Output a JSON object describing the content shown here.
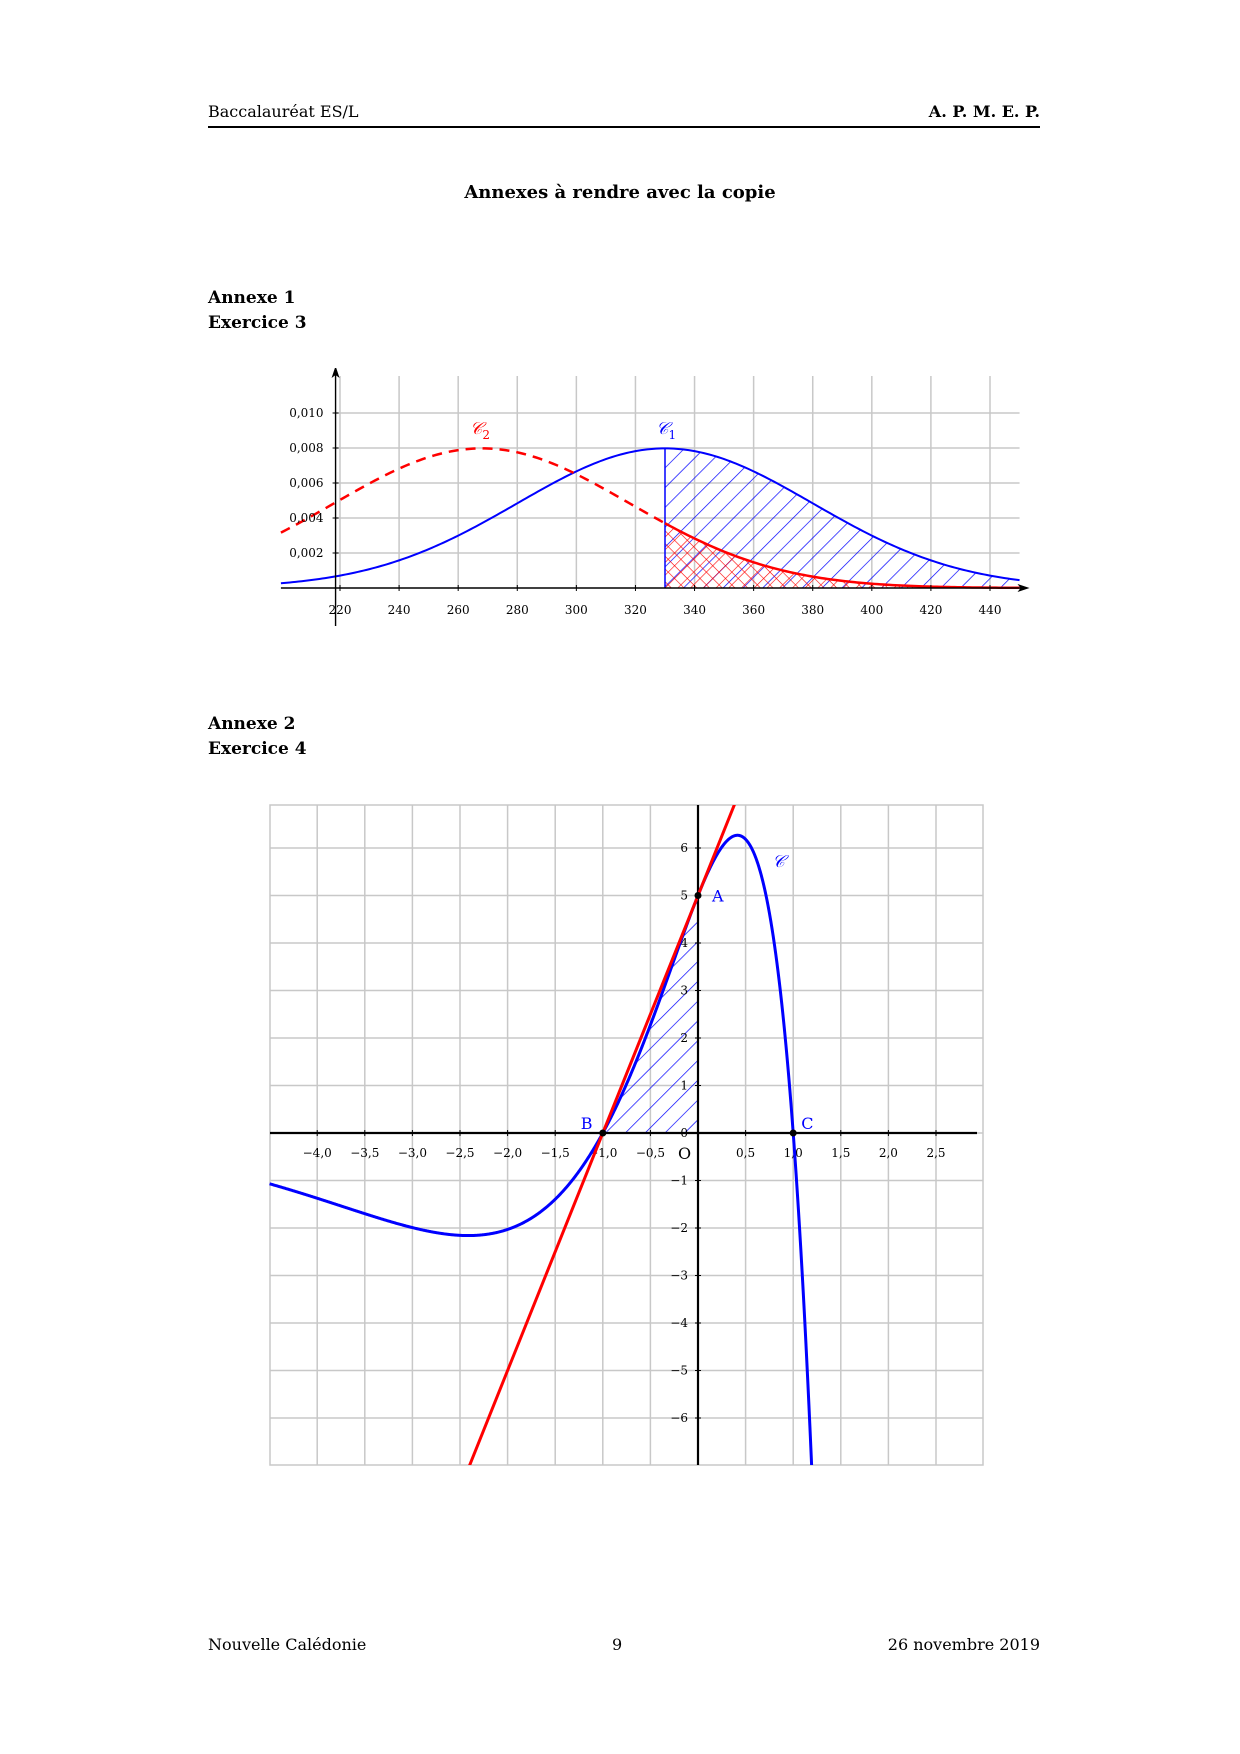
{
  "header": {
    "left": "Baccalauréat ES/L",
    "right": "A. P. M. E. P."
  },
  "page_title": "Annexes à rendre avec la copie",
  "annexe1": {
    "title": "Annexe 1",
    "subtitle": "Exercice 3"
  },
  "annexe2": {
    "title": "Annexe 2",
    "subtitle": "Exercice 4"
  },
  "footer": {
    "left": "Nouvelle Calédonie",
    "center": "9",
    "right": "26 novembre 2019"
  },
  "chart_data": [
    {
      "type": "line",
      "title": "",
      "xlabel": "",
      "ylabel": "",
      "xlim": [
        200,
        450
      ],
      "ylim": [
        0,
        0.0105
      ],
      "x_ticks": [
        220,
        240,
        260,
        280,
        300,
        320,
        340,
        360,
        380,
        400,
        420,
        440
      ],
      "x_tick_labels": [
        "220",
        "240",
        "260",
        "280",
        "300",
        "320",
        "340",
        "360",
        "380",
        "400",
        "420",
        "440"
      ],
      "y_ticks": [
        0.002,
        0.004,
        0.006,
        0.008,
        0.01
      ],
      "y_tick_labels": [
        "0,002",
        "0,004",
        "0,006",
        "0,008",
        "0,010"
      ],
      "grid": true,
      "series": [
        {
          "name": "𝒞1",
          "label_main": "𝒞",
          "label_sub": "1",
          "color": "#0000ff",
          "style": "solid",
          "distribution": "normal",
          "mean": 330,
          "sd": 50,
          "shaded_from": 330,
          "hatch": "diagonal"
        },
        {
          "name": "𝒞2",
          "label_main": "𝒞",
          "label_sub": "2",
          "color": "#ff0000",
          "style": "dashed-before-330",
          "distribution": "normal",
          "mean": 268,
          "sd": 50,
          "shaded_from": 330,
          "hatch": "crosshatch"
        }
      ]
    },
    {
      "type": "line",
      "title": "",
      "xlabel": "",
      "ylabel": "",
      "xlim": [
        -4.5,
        3.0
      ],
      "ylim": [
        -7,
        7
      ],
      "x_ticks": [
        -4.0,
        -3.5,
        -3.0,
        -2.5,
        -2.0,
        -1.5,
        -1.0,
        -0.5,
        0.5,
        1.0,
        1.5,
        2.0,
        2.5
      ],
      "x_tick_labels": [
        "−4,0",
        "−3,5",
        "−3,0",
        "−2,5",
        "−2,0",
        "−1,5",
        "−1,0",
        "−0,5",
        "0,5",
        "1,0",
        "1,5",
        "2,0",
        "2,5"
      ],
      "y_ticks": [
        -6,
        -5,
        -4,
        -3,
        -2,
        -1,
        1,
        2,
        3,
        4,
        5,
        6
      ],
      "y_tick_labels": [
        "−6",
        "−5",
        "−4",
        "−3",
        "−2",
        "−1",
        "1",
        "2",
        "3",
        "4",
        "5",
        "6"
      ],
      "origin_label": "O",
      "origin_zero": "0",
      "grid": true,
      "series": [
        {
          "name": "𝒞",
          "color": "#0000ff",
          "function": "5(1-x)(1+x)e^x"
        },
        {
          "name": "tangent",
          "color": "#ff0000",
          "function": "5x+5"
        }
      ],
      "points": [
        {
          "label": "A",
          "x": 0,
          "y": 5
        },
        {
          "label": "B",
          "x": -1,
          "y": 0
        },
        {
          "label": "C",
          "x": 1,
          "y": 0
        }
      ],
      "shaded_region": {
        "between": [
          "tangent",
          "x-axis"
        ],
        "x_from": -1,
        "x_to": 0,
        "hatch": "diagonal"
      }
    }
  ]
}
